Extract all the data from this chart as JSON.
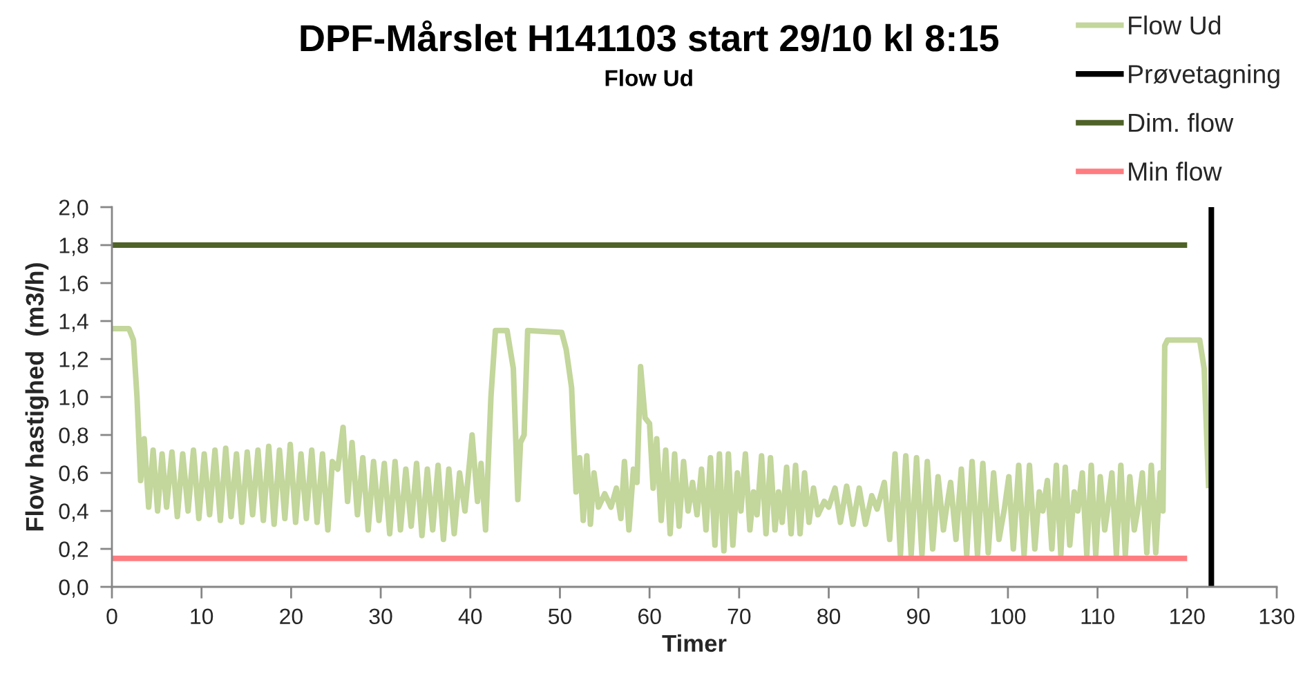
{
  "chart_data": {
    "type": "line",
    "title": "DPF-Mårslet H141103 start 29/10 kl 8:15",
    "subtitle": "Flow Ud",
    "xlabel": "Timer",
    "ylabel": "Flow hastighed  (m3/h)",
    "xlim": [
      0,
      130
    ],
    "xticks": [
      0,
      10,
      20,
      30,
      40,
      50,
      60,
      70,
      80,
      90,
      100,
      110,
      120,
      130
    ],
    "ylim": [
      0,
      2.0
    ],
    "yticks": [
      {
        "value": 0,
        "label": "0,0"
      },
      {
        "value": 0.2,
        "label": "0,2"
      },
      {
        "value": 0.4,
        "label": "0,4"
      },
      {
        "value": 0.6,
        "label": "0,6"
      },
      {
        "value": 0.8,
        "label": "0,8"
      },
      {
        "value": 1.0,
        "label": "1,0"
      },
      {
        "value": 1.2,
        "label": "1,2"
      },
      {
        "value": 1.4,
        "label": "1,4"
      },
      {
        "value": 1.6,
        "label": "1,6"
      },
      {
        "value": 1.8,
        "label": "1,8"
      },
      {
        "value": 2.0,
        "label": "2,0"
      }
    ],
    "legend": "top right",
    "series": [
      {
        "name": "Flow Ud",
        "color": "#c3d69b",
        "x": [
          0,
          1.9,
          2.4,
          2.8,
          3.2,
          3.6,
          4.1,
          4.6,
          5.1,
          5.6,
          6.1,
          6.7,
          7.3,
          7.9,
          8.5,
          9.1,
          9.7,
          10.3,
          10.9,
          11.5,
          12.1,
          12.7,
          13.3,
          13.9,
          14.5,
          15.1,
          15.7,
          16.3,
          16.9,
          17.5,
          18.1,
          18.7,
          19.3,
          19.9,
          20.5,
          21.1,
          21.7,
          22.3,
          22.9,
          23.5,
          24.1,
          24.6,
          25.2,
          25.8,
          26.3,
          26.8,
          27.4,
          28.0,
          28.6,
          29.2,
          29.8,
          30.4,
          31.0,
          31.6,
          32.2,
          32.8,
          33.4,
          34.0,
          34.6,
          35.2,
          35.8,
          36.4,
          37.0,
          37.6,
          38.2,
          38.8,
          39.4,
          40.2,
          40.8,
          41.2,
          41.7,
          42.3,
          42.8,
          44.1,
          44.8,
          45.3,
          45.6,
          46.0,
          46.4,
          50.2,
          50.7,
          51.3,
          51.8,
          52.2,
          52.6,
          53.0,
          53.4,
          53.8,
          54.3,
          55.0,
          55.7,
          56.3,
          56.8,
          57.2,
          57.7,
          58.2,
          58.6,
          59.0,
          59.5,
          60.0,
          60.4,
          60.8,
          61.3,
          61.8,
          62.3,
          62.8,
          63.3,
          63.8,
          64.3,
          64.8,
          65.3,
          65.8,
          66.3,
          66.8,
          67.3,
          67.8,
          68.3,
          68.8,
          69.3,
          69.8,
          70.2,
          70.7,
          71.2,
          71.6,
          72.0,
          72.5,
          73.0,
          73.5,
          74.0,
          74.4,
          74.8,
          75.3,
          75.8,
          76.3,
          76.8,
          77.3,
          77.8,
          78.3,
          78.8,
          79.5,
          80.0,
          80.7,
          81.3,
          82.0,
          82.7,
          83.4,
          84.1,
          84.8,
          85.4,
          86.2,
          86.8,
          87.4,
          88.0,
          88.6,
          89.2,
          89.8,
          90.4,
          91.0,
          91.6,
          92.2,
          92.8,
          93.1,
          93.6,
          94.2,
          94.8,
          95.4,
          96.0,
          96.6,
          97.2,
          97.8,
          98.4,
          99.0,
          99.6,
          100.1,
          100.6,
          101.2,
          101.8,
          102.4,
          103.0,
          103.5,
          103.9,
          104.4,
          104.9,
          105.4,
          105.9,
          106.4,
          106.9,
          107.4,
          107.8,
          108.3,
          108.8,
          109.3,
          109.8,
          110.3,
          110.8,
          111.1,
          111.6,
          112.1,
          112.6,
          113.1,
          113.6,
          114.1,
          114.5,
          115.0,
          115.5,
          116.0,
          116.5,
          117.0,
          117.3,
          117.5,
          117.8,
          121.4,
          121.9,
          122.4
        ],
        "values": [
          1.36,
          1.36,
          1.3,
          1.0,
          0.56,
          0.78,
          0.42,
          0.72,
          0.4,
          0.7,
          0.42,
          0.71,
          0.37,
          0.7,
          0.4,
          0.72,
          0.36,
          0.7,
          0.38,
          0.72,
          0.35,
          0.73,
          0.37,
          0.7,
          0.34,
          0.71,
          0.38,
          0.72,
          0.35,
          0.74,
          0.33,
          0.72,
          0.36,
          0.75,
          0.34,
          0.7,
          0.36,
          0.72,
          0.34,
          0.7,
          0.3,
          0.66,
          0.62,
          0.84,
          0.45,
          0.76,
          0.38,
          0.68,
          0.3,
          0.66,
          0.35,
          0.65,
          0.28,
          0.66,
          0.3,
          0.62,
          0.32,
          0.65,
          0.27,
          0.62,
          0.3,
          0.64,
          0.25,
          0.62,
          0.28,
          0.6,
          0.4,
          0.8,
          0.45,
          0.65,
          0.3,
          1.0,
          1.35,
          1.35,
          1.15,
          0.46,
          0.76,
          0.8,
          1.35,
          1.34,
          1.25,
          1.05,
          0.5,
          0.68,
          0.35,
          0.69,
          0.33,
          0.6,
          0.42,
          0.49,
          0.42,
          0.52,
          0.36,
          0.66,
          0.3,
          0.62,
          0.55,
          1.16,
          0.89,
          0.86,
          0.52,
          0.78,
          0.35,
          0.72,
          0.28,
          0.7,
          0.32,
          0.66,
          0.4,
          0.55,
          0.38,
          0.62,
          0.3,
          0.68,
          0.22,
          0.7,
          0.19,
          0.7,
          0.22,
          0.6,
          0.4,
          0.7,
          0.3,
          0.5,
          0.38,
          0.69,
          0.28,
          0.68,
          0.3,
          0.5,
          0.34,
          0.63,
          0.28,
          0.64,
          0.28,
          0.6,
          0.34,
          0.52,
          0.38,
          0.45,
          0.42,
          0.52,
          0.34,
          0.53,
          0.33,
          0.52,
          0.33,
          0.48,
          0.41,
          0.55,
          0.25,
          0.7,
          0.17,
          0.69,
          0.17,
          0.68,
          0.17,
          0.66,
          0.2,
          0.58,
          0.3,
          0.4,
          0.55,
          0.25,
          0.62,
          0.17,
          0.66,
          0.17,
          0.65,
          0.18,
          0.6,
          0.25,
          0.41,
          0.58,
          0.2,
          0.64,
          0.17,
          0.64,
          0.2,
          0.5,
          0.4,
          0.56,
          0.2,
          0.64,
          0.17,
          0.63,
          0.22,
          0.5,
          0.4,
          0.6,
          0.17,
          0.64,
          0.17,
          0.58,
          0.3,
          0.4,
          0.6,
          0.17,
          0.64,
          0.17,
          0.58,
          0.3,
          0.41,
          0.6,
          0.18,
          0.64,
          0.18,
          0.6,
          0.4,
          1.27,
          1.3,
          1.3,
          1.15,
          0.52
        ]
      },
      {
        "name": "Prøvetagning",
        "color": "#000000",
        "x": [
          122.7,
          122.7
        ],
        "values": [
          0,
          2.0
        ]
      },
      {
        "name": "Dim. flow",
        "color": "#4f6228",
        "x": [
          0,
          120
        ],
        "values": [
          1.8,
          1.8
        ]
      },
      {
        "name": "Min flow",
        "color": "#ff7c80",
        "x": [
          0,
          120
        ],
        "values": [
          0.15,
          0.15
        ]
      }
    ]
  }
}
